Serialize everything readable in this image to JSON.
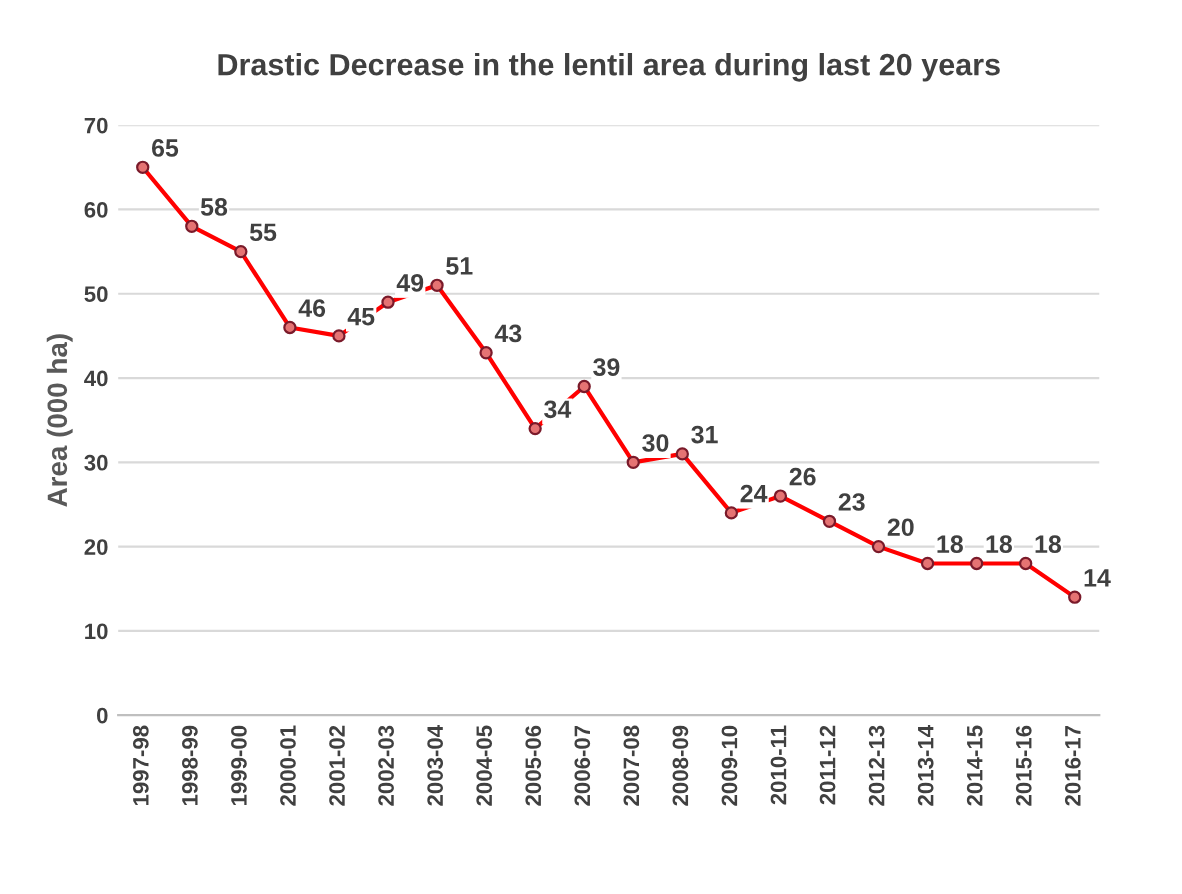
{
  "chart_data": {
    "type": "line",
    "title": "Drastic Decrease in the lentil area during last 20 years",
    "ylabel": "Area (000 ha)",
    "categories": [
      "1997-98",
      "1998-99",
      "1999-00",
      "2000-01",
      "2001-02",
      "2002-03",
      "2003-04",
      "2004-05",
      "2005-06",
      "2006-07",
      "2007-08",
      "2008-09",
      "2009-10",
      "2010-11",
      "2011-12",
      "2012-13",
      "2013-14",
      "2014-15",
      "2015-16",
      "2016-17"
    ],
    "series": [
      {
        "color": "#ff0000",
        "values": [
          65,
          58,
          55,
          46,
          45,
          49,
          51,
          43,
          34,
          39,
          30,
          31,
          24,
          26,
          23,
          20,
          18,
          18,
          18,
          14
        ]
      }
    ],
    "ylim": [
      0,
      70
    ],
    "yticks": [
      0,
      10,
      20,
      30,
      40,
      50,
      60,
      70
    ],
    "grid": "y",
    "marker": "circle",
    "line_style": "solid",
    "data_labels": true,
    "legend": false
  }
}
